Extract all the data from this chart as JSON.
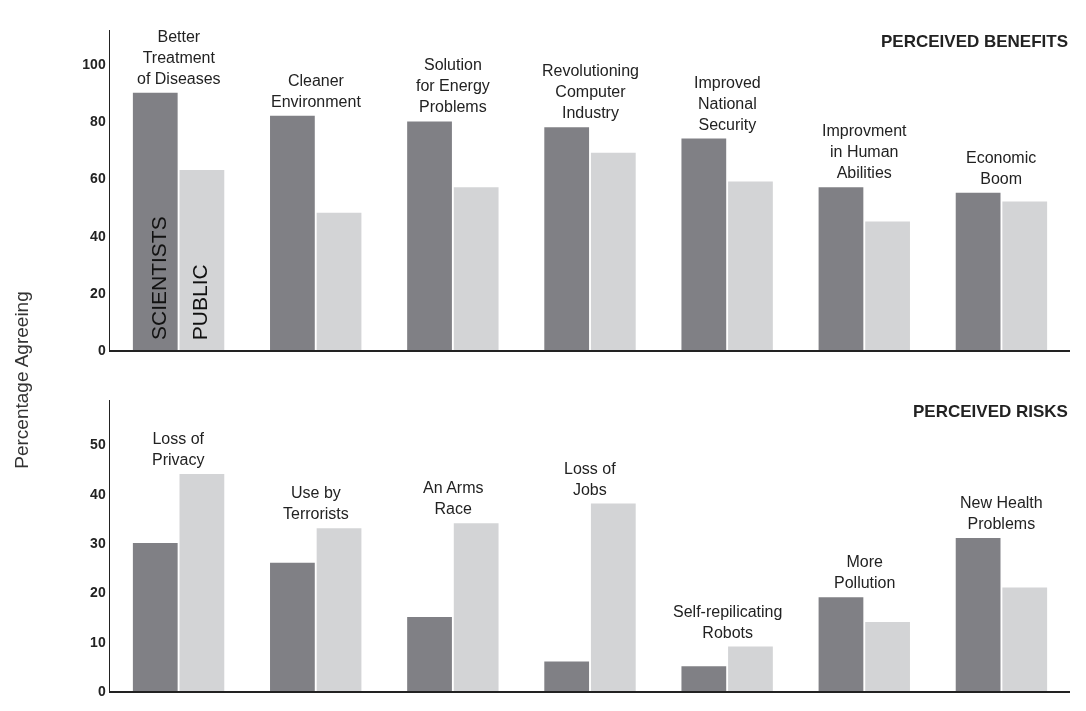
{
  "chart_data": [
    {
      "type": "bar",
      "title": "PERCEIVED BENEFITS",
      "ylabel": "Percentage Agreeing",
      "categories": [
        "Better\nTreatment\nof Diseases",
        "Cleaner\nEnvironment",
        "Solution\nfor Energy\nProblems",
        "Revolutioning\nComputer\nIndustry",
        "Improved\nNational\nSecurity",
        "Improvment\nin Human\nAbilities",
        "Economic\nBoom"
      ],
      "series": [
        {
          "name": "SCIENTISTS",
          "color": "#808085",
          "values": [
            90,
            82,
            80,
            78,
            74,
            57,
            55
          ]
        },
        {
          "name": "PUBLIC",
          "color": "#d3d4d6",
          "values": [
            63,
            48,
            57,
            69,
            59,
            45,
            52
          ]
        }
      ],
      "ylim": [
        0,
        112
      ],
      "yticks": [
        0,
        20,
        40,
        60,
        80,
        100
      ],
      "grid": false,
      "legend": false
    },
    {
      "type": "bar",
      "title": "PERCEIVED RISKS",
      "categories": [
        "Loss of\nPrivacy",
        "Use by\nTerrorists",
        "An Arms\nRace",
        "Loss of\nJobs",
        "Self-repilicating\nRobots",
        "More\nPollution",
        "New Health\nProblems"
      ],
      "series": [
        {
          "color": "#808085",
          "values": [
            30,
            26,
            15,
            6,
            5,
            19,
            31
          ]
        },
        {
          "color": "#d3d4d6",
          "values": [
            44,
            33,
            34,
            38,
            9,
            14,
            21
          ]
        }
      ],
      "ylim": [
        0,
        59
      ],
      "yticks": [
        0,
        10,
        20,
        30,
        40,
        50
      ],
      "grid": false,
      "legend": false
    }
  ]
}
